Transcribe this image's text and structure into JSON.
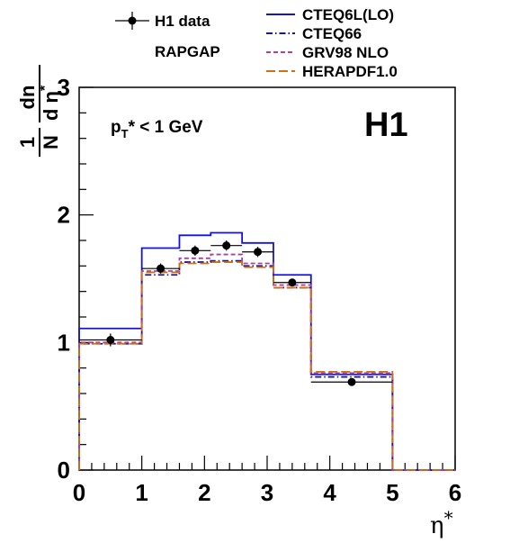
{
  "chart_data": {
    "type": "histogram",
    "title": "",
    "logo": "H1",
    "cut_label": {
      "base": "p",
      "sub": "T",
      "rest": "* < 1 GeV"
    },
    "xlabel": {
      "symbol": "η",
      "sup": "*"
    },
    "ylabel": {
      "num": "1",
      "den_n": "N",
      "dn": "dn",
      "d_eta": "d η",
      "sup": "*"
    },
    "xlim": [
      0,
      6
    ],
    "ylim": [
      0,
      3
    ],
    "x_ticks": [
      "0",
      "1",
      "2",
      "3",
      "4",
      "5",
      "6"
    ],
    "y_ticks": [
      "0",
      "1",
      "2",
      "3"
    ],
    "generator_label": "RAPGAP",
    "data": {
      "name": "H1 data",
      "x": [
        0.5,
        1.3,
        1.85,
        2.35,
        2.85,
        3.4,
        4.35
      ],
      "xerr": [
        0.5,
        0.3,
        0.25,
        0.25,
        0.25,
        0.3,
        0.65
      ],
      "y": [
        1.02,
        1.58,
        1.72,
        1.76,
        1.71,
        1.47,
        0.69
      ],
      "yerr": [
        0.05,
        0.04,
        0.04,
        0.04,
        0.04,
        0.03,
        0.02
      ]
    },
    "bin_edges": [
      0,
      1,
      1.6,
      2.1,
      2.6,
      3.1,
      3.7,
      5.0,
      6.0
    ],
    "series": [
      {
        "name": "CTEQ6L(LO)",
        "color": "#1414d8",
        "style": "solid",
        "values": [
          1.11,
          1.74,
          1.84,
          1.86,
          1.78,
          1.53,
          0.75,
          0
        ]
      },
      {
        "name": "CTEQ66",
        "color": "#1a1a8c",
        "style": "dashdot",
        "values": [
          0.99,
          1.53,
          1.63,
          1.64,
          1.6,
          1.43,
          0.73,
          0
        ]
      },
      {
        "name": "GRV98 NLO",
        "color": "#b040a0",
        "style": "dashed",
        "values": [
          1.0,
          1.56,
          1.66,
          1.69,
          1.62,
          1.45,
          0.76,
          0
        ]
      },
      {
        "name": "HERAPDF1.0",
        "color": "#d07010",
        "style": "longdash",
        "values": [
          0.99,
          1.55,
          1.62,
          1.63,
          1.59,
          1.43,
          0.77,
          0
        ]
      }
    ]
  }
}
